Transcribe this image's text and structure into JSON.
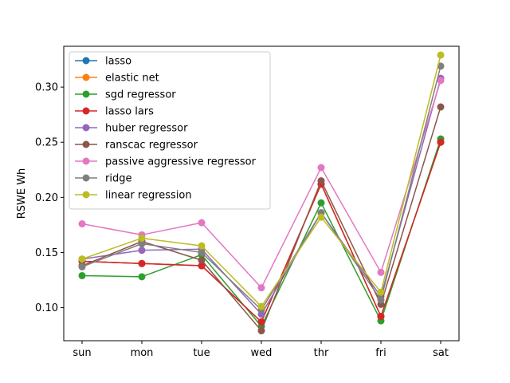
{
  "chart_data": {
    "type": "line",
    "title": "",
    "xlabel": "",
    "ylabel": "RSWE Wh",
    "categories": [
      "sun",
      "mon",
      "tue",
      "wed",
      "thr",
      "fri",
      "sat"
    ],
    "ylim": [
      0.07,
      0.337
    ],
    "yticks": [
      0.1,
      0.15,
      0.2,
      0.25,
      0.3
    ],
    "ytick_labels": [
      "0.10",
      "0.15",
      "0.20",
      "0.25",
      "0.30"
    ],
    "grid": false,
    "legend_position": "upper-left",
    "series": [
      {
        "name": "lasso",
        "color": "#1f77b4",
        "values": [
          0.142,
          0.14,
          0.138,
          0.087,
          0.212,
          0.092,
          0.25
        ]
      },
      {
        "name": "elastic net",
        "color": "#ff7f0e",
        "values": [
          0.142,
          0.14,
          0.138,
          0.087,
          0.212,
          0.092,
          0.25
        ]
      },
      {
        "name": "sgd regressor",
        "color": "#2ca02c",
        "values": [
          0.129,
          0.128,
          0.148,
          0.083,
          0.195,
          0.088,
          0.253
        ]
      },
      {
        "name": "lasso lars",
        "color": "#d62728",
        "values": [
          0.142,
          0.14,
          0.138,
          0.087,
          0.212,
          0.092,
          0.25
        ]
      },
      {
        "name": "huber regressor",
        "color": "#9467bd",
        "values": [
          0.144,
          0.152,
          0.153,
          0.094,
          0.186,
          0.11,
          0.308
        ]
      },
      {
        "name": "ranscac regressor",
        "color": "#8c564b",
        "values": [
          0.138,
          0.16,
          0.143,
          0.079,
          0.215,
          0.103,
          0.282
        ]
      },
      {
        "name": "passive aggressive regressor",
        "color": "#e377c2",
        "values": [
          0.176,
          0.166,
          0.177,
          0.118,
          0.227,
          0.132,
          0.306
        ]
      },
      {
        "name": "ridge",
        "color": "#7f7f7f",
        "values": [
          0.137,
          0.158,
          0.15,
          0.098,
          0.186,
          0.107,
          0.319
        ]
      },
      {
        "name": "linear regression",
        "color": "#bcbd22",
        "values": [
          0.144,
          0.163,
          0.156,
          0.101,
          0.182,
          0.114,
          0.329
        ]
      }
    ]
  }
}
